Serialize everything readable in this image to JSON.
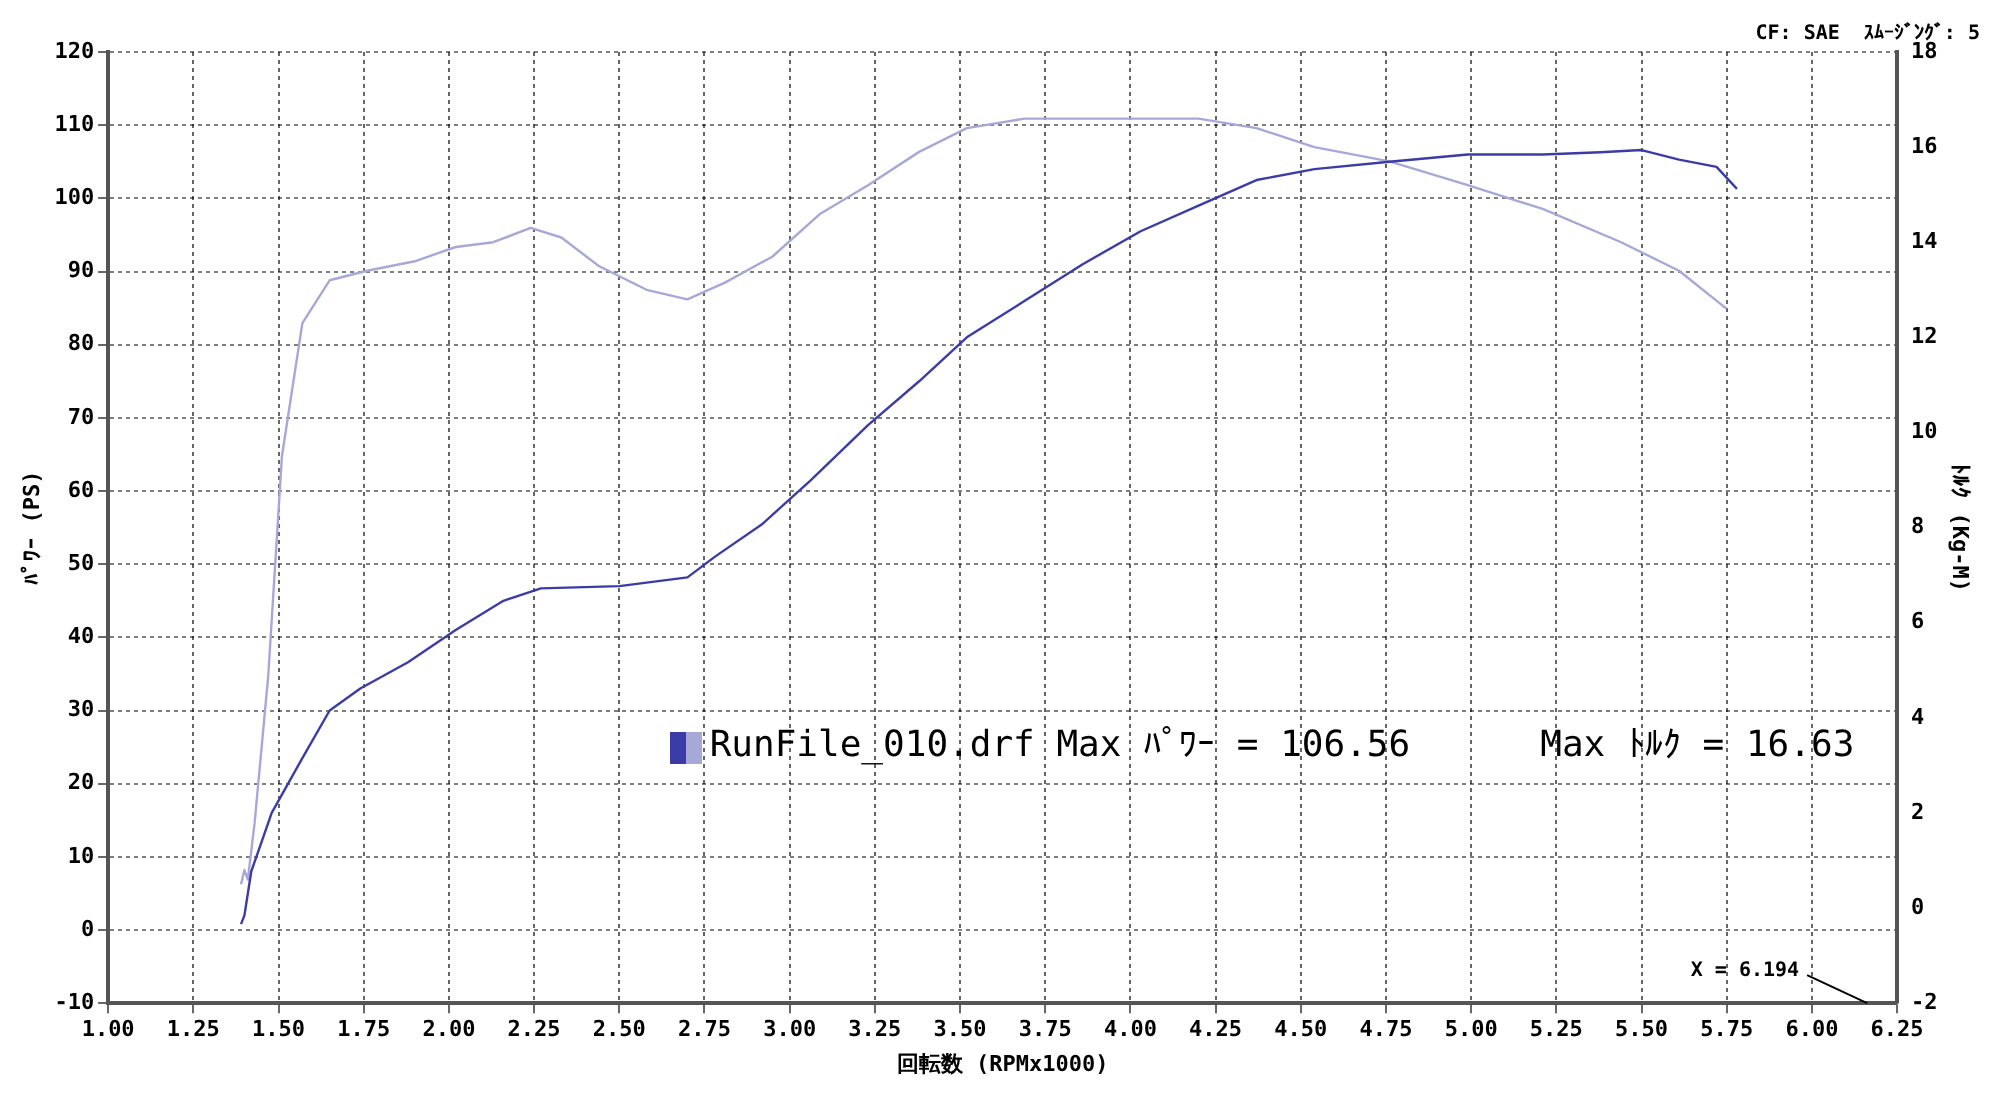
{
  "chart_data": {
    "type": "line",
    "xlabel": "回転数 (RPMx1000)",
    "ylabel": "ﾊﾟﾜｰ (PS)",
    "y2label": "ﾄﾙｸ (Kg-M)",
    "annotations": [
      "CF: SAE  ｽﾑｰｼﾞﾝｸﾞ: 5",
      "RunFile_010.drf Max ﾊﾟﾜｰ = 106.56      Max ﾄﾙｸ = 16.63",
      "X = 6.194"
    ],
    "series": [
      {
        "color": "#3c3ca8",
        "x": [
          1.39,
          1.4,
          1.42,
          1.48,
          1.57,
          1.65,
          1.74,
          1.88,
          2.02,
          2.16,
          2.27,
          2.5,
          2.7,
          2.78,
          2.92,
          3.06,
          3.23,
          3.38,
          3.52,
          3.69,
          3.86,
          4.03,
          4.2,
          4.37,
          4.54,
          4.76,
          4.99,
          5.21,
          5.38,
          5.5,
          5.61,
          5.72,
          5.78
        ],
        "values": [
          0.8,
          2,
          8,
          16,
          23.5,
          30,
          33,
          36.6,
          41,
          45,
          46.7,
          47,
          48.2,
          51,
          55.5,
          61.4,
          69,
          75,
          81,
          86,
          91,
          95.5,
          99,
          102.5,
          104,
          105,
          106,
          106,
          106.3,
          106.6,
          105.3,
          104.3,
          101.3
        ]
      },
      {
        "color": "#a8a8d8",
        "axis": "y2",
        "x": [
          1.39,
          1.4,
          1.41,
          1.43,
          1.47,
          1.51,
          1.57,
          1.65,
          1.76,
          1.9,
          2.02,
          2.13,
          2.24,
          2.33,
          2.44,
          2.58,
          2.7,
          2.81,
          2.95,
          3.09,
          3.23,
          3.38,
          3.52,
          3.69,
          3.86,
          4.05,
          4.2,
          4.37,
          4.54,
          4.76,
          4.99,
          5.21,
          5.44,
          5.61,
          5.75
        ],
        "values": [
          0.5,
          0.8,
          0.6,
          1.8,
          4.9,
          9.5,
          12.3,
          13.2,
          13.4,
          13.6,
          13.9,
          14,
          14.3,
          14.1,
          13.5,
          13,
          12.8,
          13.15,
          13.7,
          14.6,
          15.2,
          15.9,
          16.4,
          16.6,
          16.6,
          16.6,
          16.6,
          16.4,
          16,
          15.7,
          15.2,
          14.7,
          14,
          13.4,
          12.6
        ]
      }
    ],
    "xlim": [
      1,
      6.25
    ],
    "xticks": [
      {
        "value": 1,
        "label": "1.00"
      },
      {
        "value": 1.25,
        "label": "1.25"
      },
      {
        "value": 1.5,
        "label": "1.50"
      },
      {
        "value": 1.75,
        "label": "1.75"
      },
      {
        "value": 2,
        "label": "2.00"
      },
      {
        "value": 2.25,
        "label": "2.25"
      },
      {
        "value": 2.5,
        "label": "2.50"
      },
      {
        "value": 2.75,
        "label": "2.75"
      },
      {
        "value": 3,
        "label": "3.00"
      },
      {
        "value": 3.25,
        "label": "3.25"
      },
      {
        "value": 3.5,
        "label": "3.50"
      },
      {
        "value": 3.75,
        "label": "3.75"
      },
      {
        "value": 4,
        "label": "4.00"
      },
      {
        "value": 4.25,
        "label": "4.25"
      },
      {
        "value": 4.5,
        "label": "4.50"
      },
      {
        "value": 4.75,
        "label": "4.75"
      },
      {
        "value": 5,
        "label": "5.00"
      },
      {
        "value": 5.25,
        "label": "5.25"
      },
      {
        "value": 5.5,
        "label": "5.50"
      },
      {
        "value": 5.75,
        "label": "5.75"
      },
      {
        "value": 6,
        "label": "6.00"
      },
      {
        "value": 6.25,
        "label": "6.25"
      }
    ],
    "ylim": [
      -10,
      120
    ],
    "yticks": [
      -10,
      0,
      10,
      20,
      30,
      40,
      50,
      60,
      70,
      80,
      90,
      100,
      110,
      120
    ],
    "y2lim": [
      -2,
      18
    ],
    "y2ticks": [
      -2,
      0,
      2,
      4,
      6,
      8,
      10,
      12,
      14,
      16,
      18
    ],
    "grid": true,
    "legend": false,
    "marker": "none",
    "line_style": "solid"
  }
}
